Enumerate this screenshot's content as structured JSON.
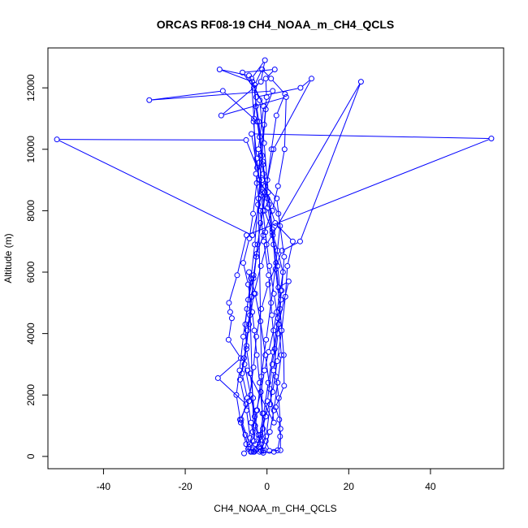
{
  "chart_data": {
    "type": "line",
    "title": "ORCAS RF08-19 CH4_NOAA_m_CH4_QCLS",
    "xlabel": "CH4_NOAA_m_CH4_QCLS",
    "ylabel": "Altitude (m)",
    "xlim": [
      -53.6,
      57.9
    ],
    "ylim": [
      -400,
      13300
    ],
    "x_ticks": [
      -40,
      -20,
      0,
      20,
      40
    ],
    "y_ticks": [
      0,
      2000,
      4000,
      6000,
      8000,
      10000,
      12000
    ],
    "grid": false,
    "legend": "none",
    "series": [
      {
        "color": "#0000ff",
        "marker": "open-circle",
        "points": [
          [
            -5.6,
            100
          ],
          [
            -4.4,
            300
          ],
          [
            -3.5,
            800
          ],
          [
            -2.6,
            1500
          ],
          [
            -1.5,
            2100
          ],
          [
            -0.6,
            2800
          ],
          [
            0.4,
            3400
          ],
          [
            1.6,
            4100
          ],
          [
            2.4,
            4700
          ],
          [
            3.3,
            5400
          ],
          [
            3.9,
            6000
          ],
          [
            2.6,
            6700
          ],
          [
            1.3,
            7300
          ],
          [
            -0.6,
            8000
          ],
          [
            -1.3,
            8700
          ],
          [
            -2.4,
            9400
          ],
          [
            -5.1,
            10300
          ],
          [
            -51.4,
            10320
          ],
          [
            -3.6,
            7200
          ],
          [
            -1.2,
            8600
          ],
          [
            -2.1,
            10000
          ],
          [
            -0.8,
            11400
          ],
          [
            -4.4,
            12400
          ],
          [
            -11.6,
            12600
          ],
          [
            -3.6,
            12200
          ],
          [
            -1.8,
            11600
          ],
          [
            -0.7,
            10200
          ],
          [
            0.3,
            8600
          ],
          [
            1.3,
            7400
          ],
          [
            2.1,
            6100
          ],
          [
            3.2,
            4800
          ],
          [
            4.1,
            3300
          ],
          [
            4.2,
            2300
          ],
          [
            2.1,
            1600
          ],
          [
            3.0,
            1200
          ],
          [
            3.2,
            650
          ],
          [
            2.6,
            200
          ],
          [
            1.7,
            150
          ],
          [
            -0.9,
            120
          ],
          [
            -1.6,
            400
          ],
          [
            -2.9,
            1000
          ],
          [
            -3.4,
            1900
          ],
          [
            -4.1,
            2700
          ],
          [
            -5.0,
            3500
          ],
          [
            -5.3,
            4300
          ],
          [
            -4.6,
            5100
          ],
          [
            -3.3,
            5900
          ],
          [
            -2.5,
            6600
          ],
          [
            -0.9,
            7200
          ],
          [
            1.3,
            8000
          ],
          [
            2.7,
            8800
          ],
          [
            4.3,
            10000
          ],
          [
            4.7,
            11700
          ],
          [
            -11.2,
            11100
          ],
          [
            -1.5,
            12200
          ],
          [
            -0.5,
            12900
          ],
          [
            -3.8,
            12300
          ],
          [
            -3.2,
            11000
          ],
          [
            -2.7,
            9200
          ],
          [
            -1.7,
            8000
          ],
          [
            -0.8,
            7000
          ],
          [
            0.4,
            5900
          ],
          [
            1.2,
            4600
          ],
          [
            1.9,
            3500
          ],
          [
            2.2,
            2600
          ],
          [
            2.9,
            1900
          ],
          [
            3.3,
            900
          ],
          [
            3.3,
            200
          ],
          [
            0.6,
            180
          ],
          [
            -0.3,
            500
          ],
          [
            -1.1,
            1400
          ],
          [
            -1.8,
            2400
          ],
          [
            -2.5,
            3300
          ],
          [
            -3.1,
            4100
          ],
          [
            -3.6,
            4700
          ],
          [
            -4.6,
            5600
          ],
          [
            -5.8,
            6300
          ],
          [
            -4.3,
            7100
          ],
          [
            -3.4,
            7900
          ],
          [
            -2.5,
            8900
          ],
          [
            -1.6,
            9800
          ],
          [
            -0.7,
            10800
          ],
          [
            -0.1,
            11700
          ],
          [
            -0.3,
            12300
          ],
          [
            1.9,
            12600
          ],
          [
            -6.0,
            12500
          ],
          [
            -3.2,
            12000
          ],
          [
            -2.0,
            10900
          ],
          [
            -1.0,
            9500
          ],
          [
            0.2,
            8100
          ],
          [
            1.6,
            6900
          ],
          [
            2.8,
            5500
          ],
          [
            5.3,
            5700
          ],
          [
            2.8,
            4300
          ],
          [
            1.3,
            3000
          ],
          [
            0.1,
            1800
          ],
          [
            -1.0,
            900
          ],
          [
            -2.0,
            300
          ],
          [
            -3.3,
            150
          ],
          [
            -4.6,
            250
          ],
          [
            -5.3,
            700
          ],
          [
            -6.6,
            1200
          ],
          [
            -4.4,
            1800
          ],
          [
            -3.3,
            2900
          ],
          [
            -2.6,
            3900
          ],
          [
            -1.4,
            4800
          ],
          [
            0.3,
            5600
          ],
          [
            3.7,
            6700
          ],
          [
            8.1,
            7000
          ],
          [
            23.0,
            12200
          ],
          [
            -0.1,
            6900
          ],
          [
            -1.5,
            6200
          ],
          [
            -3.2,
            5300
          ],
          [
            -4.4,
            4300
          ],
          [
            -5.6,
            3200
          ],
          [
            -6.6,
            2500
          ],
          [
            -5.0,
            1500
          ],
          [
            -4.1,
            600
          ],
          [
            -3.1,
            150
          ],
          [
            -2.5,
            250
          ],
          [
            -1.6,
            700
          ],
          [
            -0.3,
            1300
          ],
          [
            1.4,
            2100
          ],
          [
            2.5,
            3100
          ],
          [
            3.6,
            4100
          ],
          [
            4.5,
            5200
          ],
          [
            5.0,
            6200
          ],
          [
            6.3,
            7000
          ],
          [
            2.0,
            7600
          ],
          [
            0.1,
            8400
          ],
          [
            -1.0,
            9600
          ],
          [
            -2.4,
            10900
          ],
          [
            -10.8,
            11900
          ],
          [
            -28.8,
            11600
          ],
          [
            1.4,
            11900
          ],
          [
            -0.3,
            11300
          ],
          [
            -1.2,
            9800
          ],
          [
            -2.2,
            8200
          ],
          [
            -3.0,
            6900
          ],
          [
            -3.9,
            5800
          ],
          [
            -4.9,
            4800
          ],
          [
            -5.8,
            3900
          ],
          [
            -6.7,
            2800
          ],
          [
            -7.5,
            2000
          ],
          [
            -6.4,
            1100
          ],
          [
            -5.1,
            400
          ],
          [
            -4.0,
            150
          ],
          [
            -2.8,
            200
          ],
          [
            -1.9,
            600
          ],
          [
            -0.8,
            1400
          ],
          [
            0.3,
            2400
          ],
          [
            1.5,
            3400
          ],
          [
            2.7,
            4500
          ],
          [
            3.6,
            5400
          ],
          [
            4.2,
            6500
          ],
          [
            2.8,
            7900
          ],
          [
            -1.9,
            9000
          ],
          [
            -3.8,
            10500
          ],
          [
            54.9,
            10350
          ],
          [
            -5.0,
            7200
          ],
          [
            -7.3,
            5900
          ],
          [
            -9.3,
            5000
          ],
          [
            -9.0,
            4700
          ],
          [
            -8.6,
            4500
          ],
          [
            -9.4,
            3800
          ],
          [
            -6.4,
            3200
          ],
          [
            -12.0,
            2550
          ],
          [
            -5.1,
            1700
          ],
          [
            -6.3,
            1200
          ],
          [
            -4.3,
            400
          ],
          [
            -3.7,
            150
          ],
          [
            -1.4,
            180
          ],
          [
            -0.2,
            650
          ],
          [
            0.8,
            1700
          ],
          [
            1.6,
            2800
          ],
          [
            2.7,
            4000
          ],
          [
            3.4,
            5100
          ],
          [
            2.6,
            6200
          ],
          [
            1.4,
            7200
          ],
          [
            0.5,
            8200
          ],
          [
            -0.9,
            9200
          ],
          [
            -1.8,
            10400
          ],
          [
            -2.7,
            11400
          ],
          [
            -3.0,
            12100
          ],
          [
            -1.2,
            12600
          ],
          [
            1.0,
            12300
          ],
          [
            4.4,
            11800
          ],
          [
            2.3,
            11100
          ],
          [
            1.1,
            10000
          ],
          [
            0.1,
            9000
          ],
          [
            -1.0,
            8000
          ],
          [
            -2.3,
            6900
          ],
          [
            -3.3,
            5800
          ],
          [
            -4.2,
            4600
          ],
          [
            -5.0,
            3600
          ],
          [
            -6.1,
            2700
          ],
          [
            -4.8,
            1900
          ],
          [
            -3.9,
            1100
          ],
          [
            -2.8,
            400
          ],
          [
            -1.8,
            150
          ],
          [
            -0.6,
            200
          ],
          [
            0.7,
            800
          ],
          [
            1.7,
            1500
          ],
          [
            2.6,
            2400
          ],
          [
            3.5,
            3300
          ],
          [
            2.9,
            4300
          ],
          [
            1.7,
            5300
          ],
          [
            0.6,
            6200
          ],
          [
            -0.4,
            7300
          ],
          [
            -1.4,
            8500
          ],
          [
            -2.5,
            9700
          ],
          [
            -3.3,
            10900
          ],
          [
            -2.6,
            11700
          ],
          [
            8.2,
            12000
          ],
          [
            10.9,
            12300
          ],
          [
            1.6,
            10000
          ],
          [
            -0.5,
            8600
          ],
          [
            -1.6,
            7600
          ],
          [
            -2.6,
            6500
          ],
          [
            -3.7,
            5200
          ],
          [
            -4.8,
            4100
          ],
          [
            -5.5,
            3000
          ],
          [
            -4.0,
            2000
          ],
          [
            -3.0,
            1300
          ],
          [
            -2.1,
            700
          ],
          [
            -1.0,
            180
          ],
          [
            -2.1,
            8400
          ],
          [
            -1.2,
            9000
          ],
          [
            -0.4,
            8800
          ],
          [
            2.4,
            8400
          ],
          [
            3.2,
            7500
          ],
          [
            2.2,
            6300
          ],
          [
            1.0,
            5000
          ],
          [
            -0.2,
            3800
          ],
          [
            -1.4,
            2600
          ],
          [
            -2.4,
            1500
          ],
          [
            -3.2,
            500
          ],
          [
            -4.4,
            6000
          ],
          [
            -2.9,
            5300
          ],
          [
            -1.6,
            4400
          ],
          [
            -0.4,
            3300
          ],
          [
            0.7,
            2200
          ],
          [
            1.7,
            1100
          ],
          [
            -4.8,
            2800
          ]
        ]
      }
    ]
  }
}
